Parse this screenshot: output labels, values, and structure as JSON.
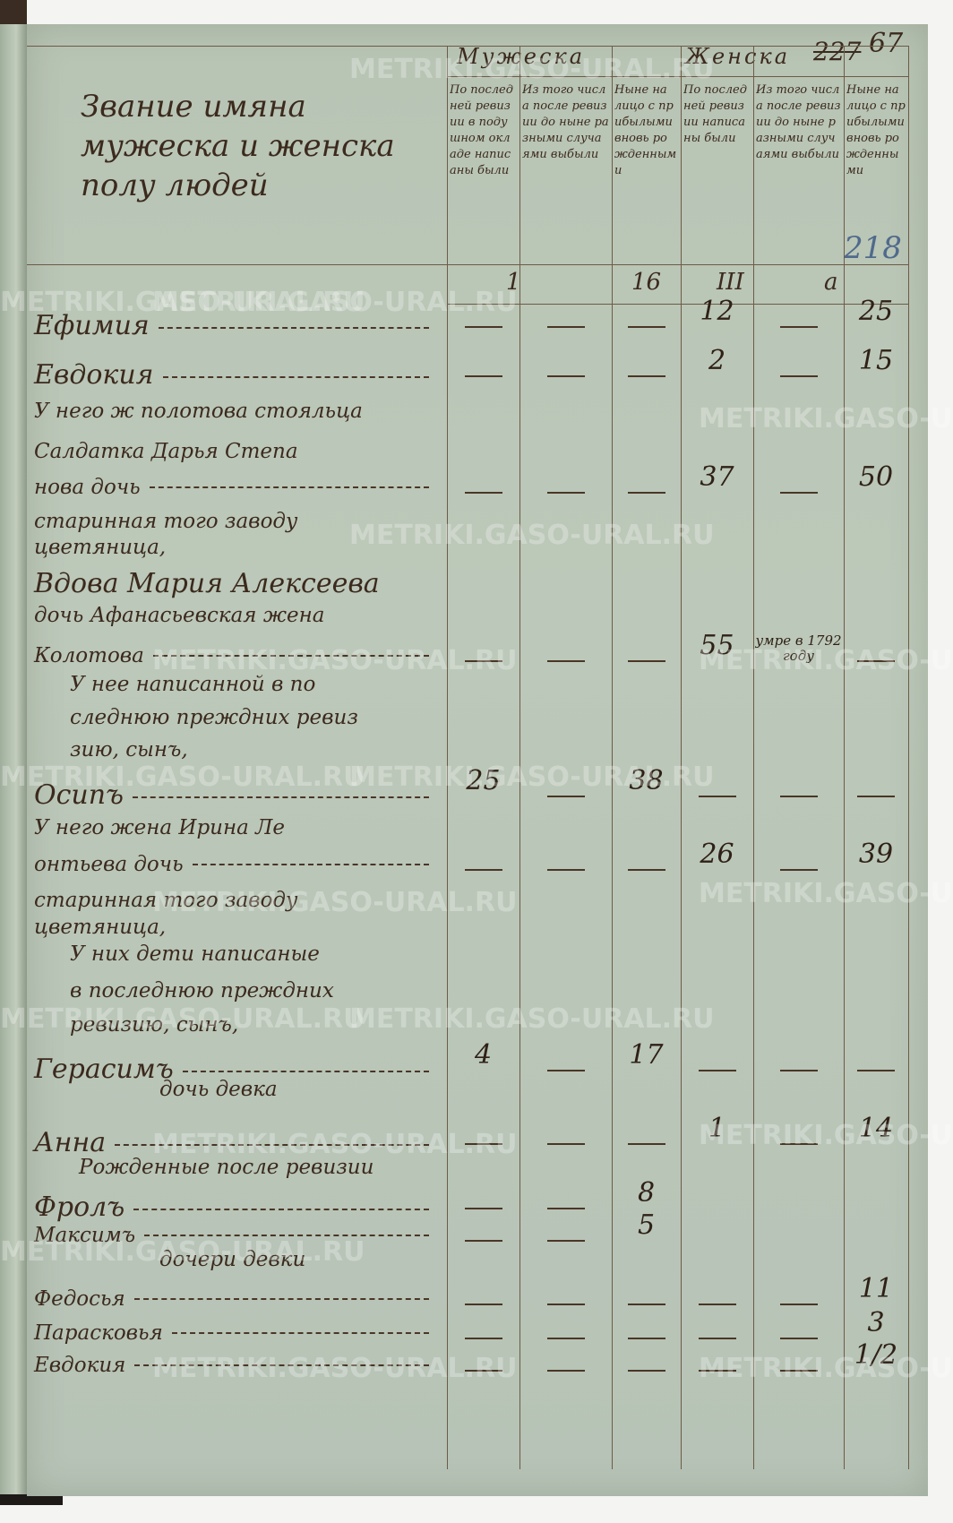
{
  "page_number": "67",
  "struck_number": "227",
  "pencil_number": "218",
  "title": "Звание имяна мужеска и женска полу людей",
  "groups": [
    "Мужеска",
    "Женска"
  ],
  "subheaders": [
    "По последней ревизии в подушном окладе написаны были",
    "Из того числа после ревизии до ныне разными случаями выбыли",
    "Ныне на лицо с прибылыми вновь рожденными",
    "По последней ревизии написаны были",
    "Из того числа после ревизии до ныне разными случаями выбыли",
    "Ныне на лицо с прибылыми вновь рожденными"
  ],
  "column_marks": [
    "1",
    "16",
    "III",
    "а"
  ],
  "lines": [
    "Ефимия",
    "Евдокия",
    "У него ж полотова стояльца",
    "Салдатка Дарья Степа",
    "нова дочь",
    "старинная того заводу",
    "цветяница,",
    "Вдова Мария Алексеева",
    "дочь Афанасьевская жена",
    "Колотова",
    "У нее написанной в по",
    "следнюю преждних ревиз",
    "зию, сынъ,",
    "Осипъ",
    "У него жена Ирина Ле",
    "онтьева дочь",
    "старинная того заводу",
    "цветяница,",
    "У них дети написаные",
    "в последнюю преждних",
    "ревизию, сынъ,",
    "Герасимъ",
    "дочь девка",
    "Анна",
    "Рожденные после ревизии",
    "Фролъ",
    "Максимъ",
    "дочери девки",
    "Федосья",
    "Парасковья",
    "Евдокия"
  ],
  "figures": [
    {
      "line": 0,
      "col": 4,
      "value": "12"
    },
    {
      "line": 0,
      "col": 6,
      "value": "25"
    },
    {
      "line": 1,
      "col": 4,
      "value": "2"
    },
    {
      "line": 1,
      "col": 6,
      "value": "15"
    },
    {
      "line": 4,
      "col": 4,
      "value": "37"
    },
    {
      "line": 4,
      "col": 6,
      "value": "50"
    },
    {
      "line": 9,
      "col": 4,
      "value": "55"
    },
    {
      "line": 9,
      "col": 5,
      "value": "умре в 1792 году"
    },
    {
      "line": 13,
      "col": 1,
      "value": "25"
    },
    {
      "line": 13,
      "col": 3,
      "value": "38"
    },
    {
      "line": 15,
      "col": 4,
      "value": "26"
    },
    {
      "line": 15,
      "col": 6,
      "value": "39"
    },
    {
      "line": 21,
      "col": 1,
      "value": "4"
    },
    {
      "line": 21,
      "col": 3,
      "value": "17"
    },
    {
      "line": 23,
      "col": 4,
      "value": "1"
    },
    {
      "line": 23,
      "col": 6,
      "value": "14"
    },
    {
      "line": 25,
      "col": 3,
      "value": "8"
    },
    {
      "line": 26,
      "col": 3,
      "value": "5"
    },
    {
      "line": 28,
      "col": 6,
      "value": "11"
    },
    {
      "line": 29,
      "col": 6,
      "value": "3"
    },
    {
      "line": 30,
      "col": 6,
      "value": "1/2"
    }
  ],
  "watermark": "METRIKI.GASO-URAL.RU",
  "colors": {
    "paper": "#b9c5b6",
    "ink": "#3b2a1d",
    "pencil": "#4f6a8c"
  }
}
